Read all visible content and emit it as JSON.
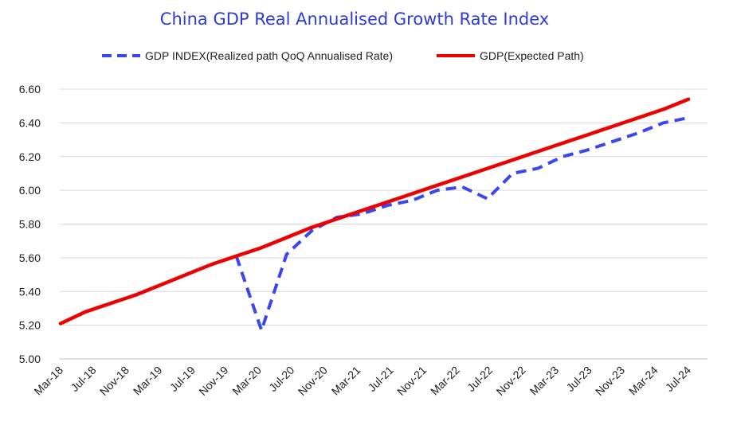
{
  "chart_data": {
    "type": "line",
    "title": "China GDP Real Annualised Growth Rate Index",
    "xlabel": "",
    "ylabel": "",
    "ylim": [
      5.0,
      6.6
    ],
    "yticks": [
      "5.00",
      "5.20",
      "5.40",
      "5.60",
      "5.80",
      "6.00",
      "6.20",
      "6.40",
      "6.60"
    ],
    "x_tick_labels": [
      "Mar-18",
      "Jul-18",
      "Nov-18",
      "Mar-19",
      "Jul-19",
      "Nov-19",
      "Mar-20",
      "Jul-20",
      "Nov-20",
      "Mar-21",
      "Jul-21",
      "Nov-21",
      "Mar-22",
      "Jul-22",
      "Nov-22",
      "Mar-23",
      "Jul-23",
      "Nov-23",
      "Mar-24",
      "Jul-24"
    ],
    "grid": true,
    "legend_position": "top",
    "x": [
      "Mar-18",
      "Jun-18",
      "Sep-18",
      "Dec-18",
      "Mar-19",
      "Jun-19",
      "Sep-19",
      "Dec-19",
      "Mar-20",
      "Jun-20",
      "Sep-20",
      "Dec-20",
      "Mar-21",
      "Jun-21",
      "Sep-21",
      "Dec-21",
      "Mar-22",
      "Jun-22",
      "Sep-22",
      "Dec-22",
      "Mar-23",
      "Jun-23",
      "Sep-23",
      "Dec-23",
      "Mar-24",
      "Jun-24"
    ],
    "series": [
      {
        "name": "GDP INDEX(Realized path QoQ Annualised Rate)",
        "color": "#3a46f0",
        "style": "dashed",
        "values": [
          null,
          null,
          null,
          null,
          null,
          null,
          null,
          5.61,
          5.17,
          5.62,
          5.76,
          5.84,
          5.86,
          5.91,
          5.94,
          6.0,
          6.02,
          5.95,
          6.1,
          6.13,
          6.2,
          6.24,
          6.29,
          6.34,
          6.4,
          6.43
        ]
      },
      {
        "name": "GDP(Expected Path)",
        "color": "#ee0000",
        "style": "solid",
        "values": [
          5.21,
          5.28,
          5.33,
          5.38,
          5.44,
          5.5,
          5.56,
          5.61,
          5.66,
          5.72,
          5.78,
          5.83,
          5.88,
          5.93,
          5.98,
          6.03,
          6.08,
          6.13,
          6.18,
          6.23,
          6.28,
          6.33,
          6.38,
          6.43,
          6.48,
          6.54
        ]
      }
    ]
  }
}
